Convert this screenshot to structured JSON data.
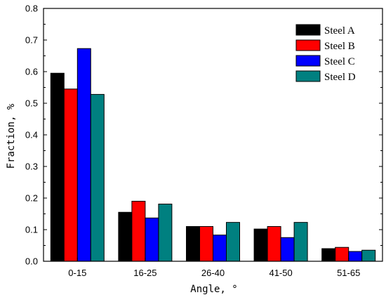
{
  "chart_data": {
    "type": "bar",
    "categories": [
      "0-15",
      "16-25",
      "26-40",
      "41-50",
      "51-65"
    ],
    "series": [
      {
        "name": "Steel A",
        "color": "#000000",
        "values": [
          0.595,
          0.155,
          0.11,
          0.102,
          0.04
        ]
      },
      {
        "name": "Steel B",
        "color": "#ff0000",
        "values": [
          0.545,
          0.19,
          0.11,
          0.11,
          0.044
        ]
      },
      {
        "name": "Steel C",
        "color": "#0000ff",
        "values": [
          0.673,
          0.137,
          0.083,
          0.075,
          0.031
        ]
      },
      {
        "name": "Steel D",
        "color": "#008080",
        "values": [
          0.528,
          0.181,
          0.123,
          0.123,
          0.035
        ]
      }
    ],
    "yticks": [
      "0.0",
      "0.1",
      "0.2",
      "0.3",
      "0.4",
      "0.5",
      "0.6",
      "0.7",
      "0.8"
    ],
    "ylim": [
      0,
      0.8
    ],
    "xlabel": "Angle, °",
    "ylabel": "Fraction, %",
    "legend_position": "top-right",
    "grid": false
  }
}
